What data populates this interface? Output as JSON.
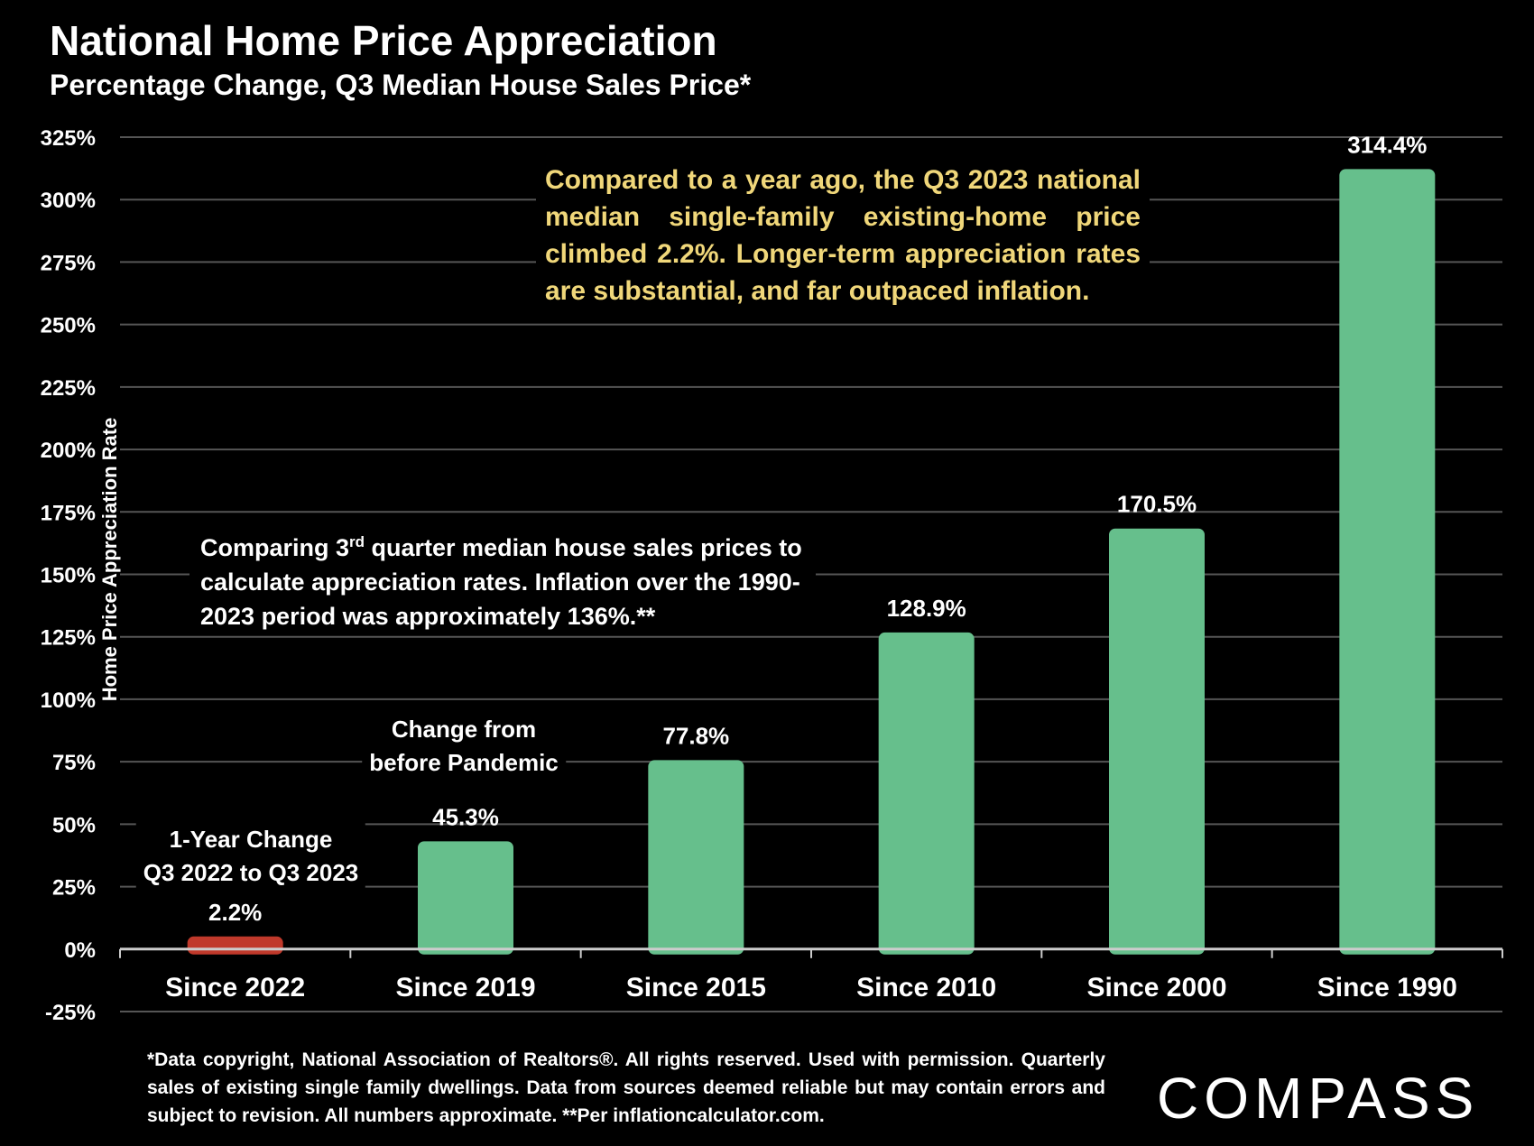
{
  "header": {
    "title": "National Home Price Appreciation",
    "subtitle": "Percentage Change, Q3 Median House Sales Price*"
  },
  "callouts": {
    "top": "Compared to a year ago, the Q3 2023 national median single-family existing-home price climbed 2.2%. Longer-term appreciation rates are substantial, and far outpaced inflation.",
    "mid_prefix": "Comparing 3",
    "mid_sup": "rd",
    "mid_rest": " quarter median house sales prices to calculate appreciation rates. Inflation over the 1990-2023 period was approximately 136%.**"
  },
  "bar_notes": {
    "one_year": [
      "1-Year Change",
      "Q3 2022 to Q3 2023"
    ],
    "pandemic": [
      "Change from",
      "before  Pandemic"
    ]
  },
  "footer": {
    "footnote": "*Data copyright, National Association of Realtors®. All rights reserved. Used with permission. Quarterly sales of existing single family dwellings. Data from sources deemed reliable but may contain errors and subject to revision. All numbers  approximate. **Per inflationcalculator.com.",
    "logo": "COMPASS"
  },
  "chart_data": {
    "type": "bar",
    "title": "National Home Price Appreciation",
    "subtitle": "Percentage Change, Q3 Median House Sales Price*",
    "xlabel": "",
    "ylabel": "Home Price Appreciation Rate",
    "categories": [
      "Since 2022",
      "Since 2019",
      "Since 2015",
      "Since 2010",
      "Since 2000",
      "Since 1990"
    ],
    "values": [
      2.2,
      45.3,
      77.8,
      128.9,
      170.5,
      314.4
    ],
    "value_labels": [
      "2.2%",
      "45.3%",
      "77.8%",
      "128.9%",
      "170.5%",
      "314.4%"
    ],
    "bar_colors": [
      "#c0392b",
      "#66bf8c",
      "#66bf8c",
      "#66bf8c",
      "#66bf8c",
      "#66bf8c"
    ],
    "ylim": [
      -25,
      325
    ],
    "yticks": [
      -25,
      0,
      25,
      50,
      75,
      100,
      125,
      150,
      175,
      200,
      225,
      250,
      275,
      300,
      325
    ],
    "ytick_labels": [
      "-25%",
      "0%",
      "25%",
      "50%",
      "75%",
      "100%",
      "125%",
      "150%",
      "175%",
      "200%",
      "225%",
      "250%",
      "275%",
      "300%",
      "325%"
    ],
    "grid": true,
    "colors": {
      "background": "#000000",
      "gridline": "#555555",
      "axis": "#cccccc",
      "callout_text": "#f0d77a"
    }
  }
}
